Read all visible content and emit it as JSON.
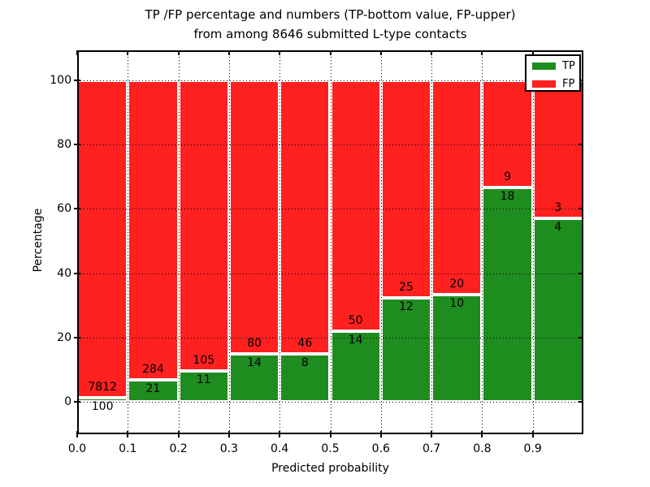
{
  "title": {
    "line1": "TP /FP percentage and numbers (TP-bottom value, FP-upper)",
    "line2": "from among 8646 submitted L-type contacts"
  },
  "chart_data": {
    "type": "bar",
    "stacked": true,
    "title": "TP /FP percentage and numbers (TP-bottom value, FP-upper) from among 8646 submitted L-type contacts",
    "xlabel": "Predicted probability",
    "ylabel": "Percentage",
    "total_contacts": 8646,
    "bin_width": 0.1,
    "bin_starts": [
      0.0,
      0.1,
      0.2,
      0.3,
      0.4,
      0.5,
      0.6,
      0.7,
      0.8,
      0.9
    ],
    "x_tick_labels": [
      "0.0",
      "0.1",
      "0.2",
      "0.3",
      "0.4",
      "0.5",
      "0.6",
      "0.7",
      "0.8",
      "0.9"
    ],
    "y_ticks": [
      0,
      20,
      40,
      60,
      80,
      100
    ],
    "y_tick_labels": [
      "0",
      "20",
      "40",
      "60",
      "80",
      "100"
    ],
    "xlim": [
      0.0,
      1.0
    ],
    "ylim": [
      -10.9,
      109.3
    ],
    "grid": "dotted black, drawn above bars",
    "series": [
      {
        "name": "TP",
        "color": "#1f8c1f",
        "counts": [
          100,
          21,
          11,
          14,
          8,
          14,
          12,
          10,
          18,
          4
        ]
      },
      {
        "name": "FP",
        "color": "#ff2020",
        "counts": [
          7812,
          284,
          105,
          80,
          46,
          50,
          25,
          20,
          9,
          3
        ]
      }
    ],
    "percent_tp": [
      1.26,
      6.89,
      9.48,
      14.89,
      14.81,
      21.88,
      32.43,
      33.33,
      66.67,
      57.14
    ],
    "legend": {
      "position": "upper right",
      "entries": [
        {
          "label": "TP",
          "color": "#1f8c1f"
        },
        {
          "label": "FP",
          "color": "#ff2020"
        }
      ]
    }
  }
}
